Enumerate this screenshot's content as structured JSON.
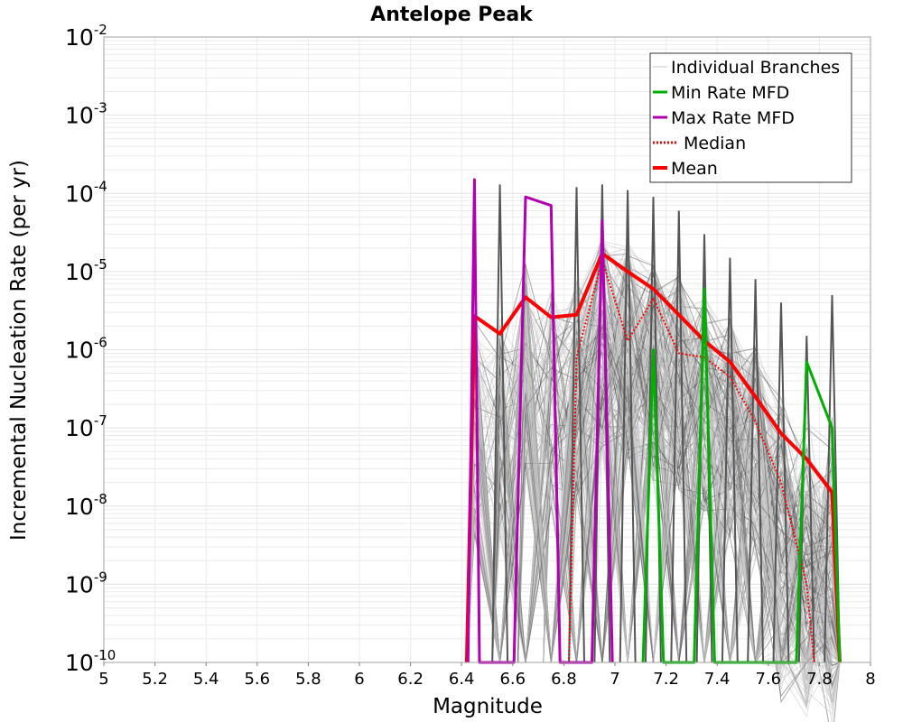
{
  "chart_data": {
    "type": "line",
    "title": "Antelope Peak",
    "xlabel": "Magnitude",
    "ylabel": "Incremental Nucleation Rate (per yr)",
    "xlim": [
      5,
      8
    ],
    "ylim": [
      1e-10,
      0.01
    ],
    "yscale": "log",
    "grid": true,
    "legend_position": "top-right",
    "x_ticks": [
      "5",
      "5.2",
      "5.4",
      "5.6",
      "5.8",
      "6",
      "6.2",
      "6.4",
      "6.6",
      "6.8",
      "7",
      "7.2",
      "7.4",
      "7.6",
      "7.8",
      "8"
    ],
    "y_ticks": [
      {
        "base": "10",
        "exp": "-10"
      },
      {
        "base": "10",
        "exp": "-9"
      },
      {
        "base": "10",
        "exp": "-8"
      },
      {
        "base": "10",
        "exp": "-7"
      },
      {
        "base": "10",
        "exp": "-6"
      },
      {
        "base": "10",
        "exp": "-5"
      },
      {
        "base": "10",
        "exp": "-4"
      },
      {
        "base": "10",
        "exp": "-3"
      },
      {
        "base": "10",
        "exp": "-2"
      }
    ],
    "legend": [
      {
        "name": "Individual Branches",
        "color": "#c8c8c8",
        "style": "solid"
      },
      {
        "name": "Min Rate MFD",
        "color": "#00b000",
        "style": "solid"
      },
      {
        "name": "Max Rate MFD",
        "color": "#b000b0",
        "style": "solid"
      },
      {
        "name": "Median",
        "color": "#ff0000",
        "style": "dotted"
      },
      {
        "name": "Mean",
        "color": "#ff0000",
        "style": "solid"
      }
    ],
    "colors": {
      "branches": "#555555",
      "branches_light": "#c8c8c8",
      "min": "#00b000",
      "max": "#b000b0",
      "median": "#ff0000",
      "mean": "#ff0000",
      "grid": "#ebebeb"
    },
    "series": [
      {
        "name": "Mean",
        "x": [
          6.42,
          6.45,
          6.55,
          6.65,
          6.75,
          6.85,
          6.95,
          7.05,
          7.15,
          7.25,
          7.35,
          7.45,
          7.55,
          7.65,
          7.75,
          7.85,
          7.88
        ],
        "y": [
          1e-10,
          2.7e-06,
          1.6e-06,
          4.7e-06,
          2.6e-06,
          2.8e-06,
          1.7e-05,
          1e-05,
          6e-06,
          2.8e-06,
          1.3e-06,
          7e-07,
          2.5e-07,
          8.5e-08,
          4e-08,
          1.5e-08,
          1e-10
        ]
      },
      {
        "name": "Median",
        "x": [
          6.82,
          6.85,
          6.95,
          7.05,
          7.15,
          7.25,
          7.35,
          7.45,
          7.55,
          7.65,
          7.75,
          7.78
        ],
        "y": [
          1e-10,
          8e-07,
          1.4e-05,
          1.3e-06,
          4.5e-06,
          9e-07,
          8e-07,
          4.5e-07,
          1.2e-07,
          2e-08,
          1e-09,
          1e-10
        ]
      },
      {
        "name": "Max Rate MFD",
        "x": [
          6.425,
          6.45,
          6.47,
          6.605,
          6.65,
          6.75,
          6.785,
          6.91,
          6.95,
          6.99
        ],
        "y": [
          1e-10,
          0.00015,
          1e-10,
          1e-10,
          9e-05,
          7e-05,
          1e-10,
          1e-10,
          4.5e-05,
          1e-10
        ]
      },
      {
        "name": "Min Rate MFD",
        "x": [
          7.11,
          7.15,
          7.19,
          7.31,
          7.35,
          7.39,
          7.71,
          7.75,
          7.85,
          7.88
        ],
        "y": [
          1e-10,
          1e-06,
          1e-10,
          1e-10,
          6e-06,
          1e-10,
          1e-10,
          7e-07,
          1e-07,
          1e-10
        ]
      }
    ]
  }
}
